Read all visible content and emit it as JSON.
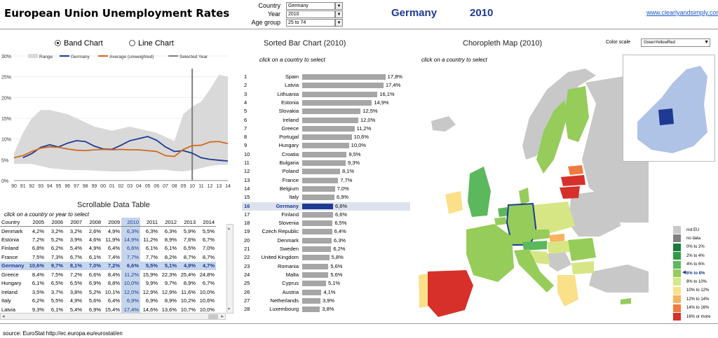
{
  "header": {
    "title": "European Union Unemployment Rates",
    "controls": [
      {
        "label": "Country",
        "value": "Germany"
      },
      {
        "label": "Year",
        "value": "2010"
      },
      {
        "label": "Age group",
        "value": "25 to 74"
      }
    ],
    "selected_country": "Germany",
    "selected_year": "2010",
    "link": "www.clearlyandsimply.com"
  },
  "left": {
    "radio_band": "Band Chart",
    "radio_line": "Line Chart",
    "table_title": "Scrollable Data Table",
    "table_hint": "click on a country or year to select"
  },
  "middle": {
    "title": "Sorted Bar Chart (2010)",
    "hint": "click on a country to select"
  },
  "right": {
    "title": "Choropleth Map (2010)",
    "hint": "click on a country to select",
    "color_scale_label": "Color scale",
    "color_scale_value": "GreenYellowRed",
    "legend": [
      {
        "label": "not EU",
        "color": "#c8c8c8"
      },
      {
        "label": "no data",
        "color": "#7f7f7f"
      },
      {
        "label": "0% to 2%",
        "color": "#1a7a3a"
      },
      {
        "label": "2% to 4%",
        "color": "#2f9a45"
      },
      {
        "label": "4% to 6%",
        "color": "#5cb85c"
      },
      {
        "label": "6% to 8%",
        "color": "#96cc5a"
      },
      {
        "label": "8% to 10%",
        "color": "#d6e685"
      },
      {
        "label": "10% to 12%",
        "color": "#fbe08a"
      },
      {
        "label": "12% to 14%",
        "color": "#f9b25f"
      },
      {
        "label": "14% to 16%",
        "color": "#f07a3c"
      },
      {
        "label": "16% or more",
        "color": "#d7302a"
      }
    ],
    "selected_band": "6% to 8%"
  },
  "footer": {
    "source": "source: EuroStat    http://ec.europa.eu/eurostat/en"
  },
  "chart_data": [
    {
      "type": "line",
      "title": "",
      "x": [
        "90",
        "91",
        "92",
        "93",
        "94",
        "95",
        "96",
        "97",
        "98",
        "99",
        "00",
        "01",
        "02",
        "03",
        "04",
        "05",
        "06",
        "07",
        "08",
        "09",
        "10",
        "11",
        "12",
        "13",
        "14"
      ],
      "ylim": [
        0,
        30
      ],
      "yticks": [
        "0%",
        "5%",
        "10%",
        "15%",
        "20%",
        "25%",
        "30%"
      ],
      "legend": [
        "Range",
        "Germany",
        "Average (unweighted)",
        "Selected Year"
      ],
      "selected_year": "10",
      "range_low": [
        4.0,
        4.0,
        4.0,
        3.5,
        3.0,
        2.8,
        2.6,
        2.5,
        2.5,
        2.4,
        2.3,
        2.2,
        2.2,
        2.2,
        2.3,
        2.5,
        2.6,
        2.6,
        2.3,
        2.2,
        2.5,
        3.0,
        3.5,
        3.8,
        3.8
      ],
      "range_high": [
        6.5,
        11.5,
        15.0,
        17.0,
        17.0,
        16.5,
        16.0,
        15.0,
        14.0,
        13.0,
        12.5,
        12.0,
        12.5,
        13.0,
        12.5,
        12.0,
        11.5,
        10.5,
        9.5,
        16.0,
        17.8,
        19.0,
        22.0,
        25.5,
        25.0
      ],
      "series": [
        {
          "name": "Germany",
          "color": "#1f3a93",
          "values": [
            null,
            5.5,
            6.5,
            8.0,
            8.6,
            8.1,
            9.0,
            9.6,
            9.4,
            8.3,
            7.6,
            7.5,
            8.5,
            9.6,
            10.1,
            10.6,
            9.7,
            8.1,
            7.0,
            7.2,
            6.6,
            5.5,
            5.1,
            4.9,
            4.7
          ]
        },
        {
          "name": "Average (unweighted)",
          "color": "#d2691e",
          "values": [
            5.5,
            6.0,
            7.0,
            7.8,
            8.1,
            8.0,
            7.6,
            7.3,
            7.2,
            7.4,
            7.5,
            7.4,
            7.5,
            7.4,
            7.4,
            7.2,
            7.0,
            6.0,
            5.8,
            7.5,
            8.4,
            8.5,
            9.3,
            9.4,
            8.9
          ]
        }
      ]
    },
    {
      "type": "bar",
      "title": "Sorted Bar Chart (2010)",
      "ranks": [
        1,
        2,
        3,
        4,
        5,
        6,
        7,
        8,
        9,
        10,
        11,
        12,
        13,
        14,
        15,
        16,
        17,
        18,
        19,
        20,
        21,
        22,
        23,
        24,
        25,
        26,
        27,
        28
      ],
      "categories": [
        "Spain",
        "Latvia",
        "Lithuania",
        "Estonia",
        "Slovakia",
        "Ireland",
        "Greece",
        "Portugal",
        "Hungary",
        "Croatia",
        "Bulgaria",
        "Poland",
        "France",
        "Belgium",
        "Italy",
        "Germany",
        "Finland",
        "Slovenia",
        "Czech Republic",
        "Denmark",
        "Sweden",
        "United Kingdom",
        "Romania",
        "Malta",
        "Cyprus",
        "Austria",
        "Netherlands",
        "Luxembourg"
      ],
      "values": [
        17.8,
        17.4,
        16.1,
        14.9,
        12.5,
        12.0,
        11.2,
        10.6,
        10.0,
        9.5,
        9.3,
        8.1,
        7.7,
        7.0,
        6.9,
        6.6,
        6.6,
        6.5,
        6.4,
        6.3,
        6.2,
        5.8,
        5.6,
        5.6,
        5.1,
        4.1,
        3.9,
        3.8
      ],
      "labels": [
        "17,8%",
        "17,4%",
        "16,1%",
        "14,9%",
        "12,5%",
        "12,0%",
        "11,2%",
        "10,6%",
        "10,0%",
        "9,5%",
        "9,3%",
        "8,1%",
        "7,7%",
        "7,0%",
        "6,9%",
        "6,6%",
        "6,6%",
        "6,5%",
        "6,4%",
        "6,3%",
        "6,2%",
        "5,8%",
        "5,6%",
        "5,6%",
        "5,1%",
        "4,1%",
        "3,9%",
        "3,8%"
      ],
      "selected": "Germany"
    },
    {
      "type": "table",
      "title": "Scrollable Data Table",
      "columns": [
        "Country",
        "2005",
        "2006",
        "2007",
        "2008",
        "2009",
        "2010",
        "2011",
        "2012",
        "2013",
        "2014"
      ],
      "selected_column": "2010",
      "selected_row": "Germany",
      "rows": [
        [
          "Denmark",
          "4,2%",
          "3,2%",
          "3,2%",
          "2,6%",
          "4,9%",
          "6,3%",
          "6,3%",
          "6,3%",
          "5,9%",
          "5,5%"
        ],
        [
          "Estonia",
          "7,2%",
          "5,2%",
          "3,9%",
          "4,6%",
          "11,9%",
          "14,9%",
          "11,2%",
          "8,9%",
          "7,6%",
          "6,7%"
        ],
        [
          "Finland",
          "6,8%",
          "6,2%",
          "5,4%",
          "4,9%",
          "6,4%",
          "6,6%",
          "6,1%",
          "6,1%",
          "6,5%",
          "7,0%"
        ],
        [
          "France",
          "7,5%",
          "7,3%",
          "6,7%",
          "6,1%",
          "7,4%",
          "7,7%",
          "7,7%",
          "8,2%",
          "8,7%",
          "8,7%"
        ],
        [
          "Germany",
          "10,6%",
          "9,7%",
          "8,1%",
          "7,0%",
          "7,2%",
          "6,6%",
          "5,5%",
          "5,1%",
          "4,9%",
          "4,7%"
        ],
        [
          "Greece",
          "8,4%",
          "7,5%",
          "7,2%",
          "6,6%",
          "8,4%",
          "11,2%",
          "15,9%",
          "22,3%",
          "25,4%",
          "24,8%"
        ],
        [
          "Hungary",
          "6,1%",
          "6,5%",
          "6,5%",
          "6,9%",
          "8,8%",
          "10,0%",
          "9,9%",
          "9,7%",
          "8,9%",
          "6,7%"
        ],
        [
          "Ireland",
          "3,5%",
          "3,7%",
          "3,8%",
          "5,2%",
          "10,1%",
          "12,0%",
          "12,9%",
          "12,9%",
          "11,6%",
          "10,0%"
        ],
        [
          "Italy",
          "6,2%",
          "5,5%",
          "4,9%",
          "5,6%",
          "6,4%",
          "6,9%",
          "6,9%",
          "8,9%",
          "10,2%",
          "10,6%"
        ],
        [
          "Latvia",
          "9,3%",
          "6,1%",
          "5,4%",
          "6,9%",
          "15,4%",
          "17,4%",
          "14,6%",
          "13,6%",
          "10,7%",
          "10,0%"
        ]
      ]
    }
  ]
}
